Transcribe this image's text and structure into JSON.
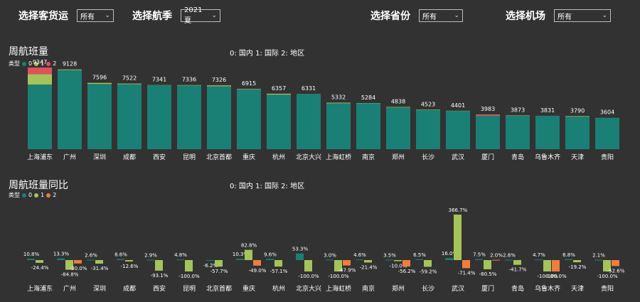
{
  "filters": [
    {
      "label": "选择客货运",
      "value": "所有"
    },
    {
      "label": "选择航季",
      "value": "2021夏"
    },
    {
      "label": "选择省份",
      "value": "所有"
    },
    {
      "label": "选择机场",
      "value": "所有"
    }
  ],
  "chart1": {
    "title": "周航班量",
    "note": "0: 国内 1: 国际 2: 地区",
    "legend_title": "类型",
    "legend": [
      {
        "name": "0",
        "color": "#1a7f74"
      },
      {
        "name": "1",
        "color": "#a4c45a"
      },
      {
        "name": "2",
        "color": "#e0515e"
      }
    ]
  },
  "chart2": {
    "title": "周航班量同比",
    "note": "0: 国内 1: 国际 2: 地区",
    "legend_title": "类型",
    "legend": [
      {
        "name": "0",
        "color": "#1a7f74"
      },
      {
        "name": "1",
        "color": "#a4c45a"
      },
      {
        "name": "2",
        "color": "#f07d3c"
      }
    ]
  },
  "chart_data": [
    {
      "type": "bar",
      "stacked": true,
      "title": "周航班量",
      "categories": [
        "上海浦东",
        "广州",
        "深圳",
        "成都",
        "西安",
        "昆明",
        "北京首都",
        "重庆",
        "杭州",
        "北京大兴",
        "上海虹桥",
        "南京",
        "郑州",
        "长沙",
        "武汉",
        "厦门",
        "青岛",
        "乌鲁木齐",
        "天津",
        "贵阳"
      ],
      "totals": [
        9347,
        9128,
        7596,
        7522,
        7341,
        7336,
        7326,
        6915,
        6357,
        6331,
        5332,
        5284,
        4838,
        4523,
        4401,
        3983,
        3873,
        3831,
        3790,
        3604
      ],
      "series": [
        {
          "name": "0",
          "values": [
            7400,
            9050,
            7460,
            7440,
            7320,
            7290,
            7200,
            6850,
            6240,
            6318,
            5250,
            5250,
            4780,
            4470,
            4370,
            3830,
            3830,
            3831,
            3720,
            3604
          ]
        },
        {
          "name": "1",
          "values": [
            1180,
            78,
            130,
            72,
            21,
            46,
            96,
            55,
            107,
            13,
            72,
            34,
            58,
            53,
            31,
            18,
            43,
            0,
            60,
            0
          ]
        },
        {
          "name": "2",
          "values": [
            767,
            0,
            6,
            10,
            0,
            0,
            30,
            10,
            10,
            0,
            10,
            0,
            0,
            0,
            0,
            135,
            0,
            0,
            10,
            0
          ]
        }
      ]
    },
    {
      "type": "bar",
      "title": "周航班量同比",
      "unit": "%",
      "categories": [
        "上海浦东",
        "广州",
        "深圳",
        "成都",
        "西安",
        "昆明",
        "北京首都",
        "重庆",
        "杭州",
        "北京大兴",
        "上海虹桥",
        "南京",
        "郑州",
        "长沙",
        "武汉",
        "厦门",
        "青岛",
        "乌鲁木齐",
        "天津",
        "贵阳"
      ],
      "series": [
        {
          "name": "0",
          "values": [
            10.8,
            13.3,
            2.6,
            8.6,
            2.9,
            4.8,
            -6.2,
            10.3,
            9.6,
            53.3,
            3.0,
            4.6,
            3.5,
            6.5,
            16.0,
            7.5,
            2.8,
            4.7,
            6.8,
            2.1
          ]
        },
        {
          "name": "1",
          "values": [
            -24.4,
            -84.8,
            -31.4,
            -12.6,
            -93.1,
            -100.0,
            -57.7,
            82.8,
            -57.1,
            -100.0,
            -100.0,
            -21.4,
            -10.0,
            -59.2,
            366.7,
            -80.5,
            -41.7,
            -100.0,
            -19.2,
            -100.0
          ]
        },
        {
          "name": "2",
          "values": [
            null,
            -30.0,
            null,
            null,
            null,
            null,
            null,
            -49.0,
            null,
            null,
            -47.9,
            null,
            -56.2,
            null,
            -71.4,
            2.0,
            null,
            -100.0,
            null,
            -52.6
          ]
        }
      ]
    }
  ]
}
